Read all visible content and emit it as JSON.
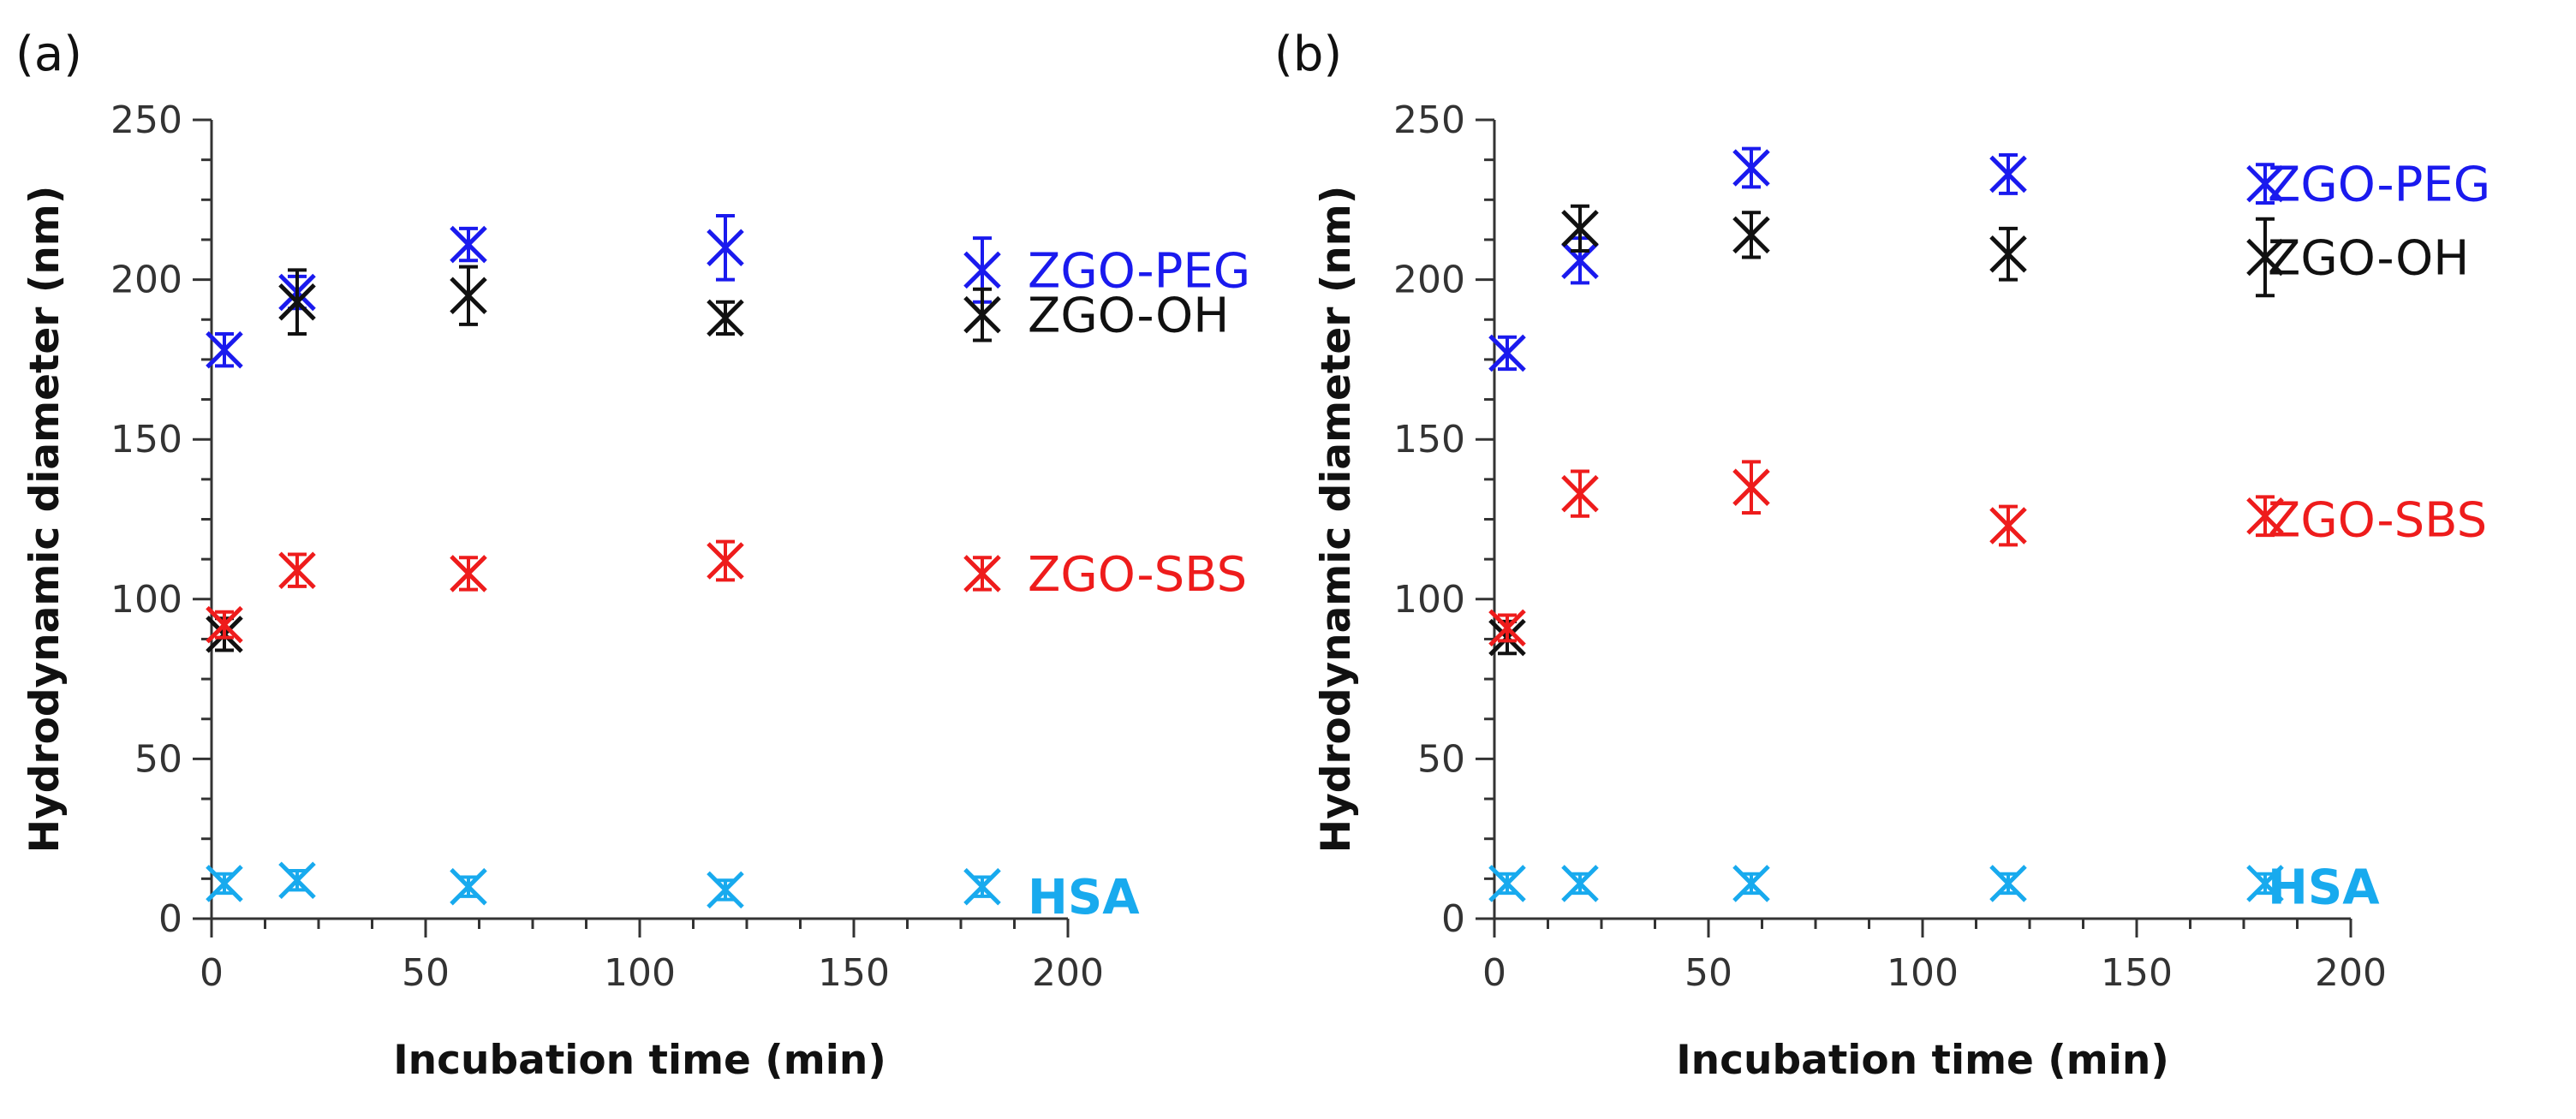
{
  "chart_data": [
    {
      "type": "scatter",
      "panel_label": "(a)",
      "xlabel": "Incubation time (min)",
      "ylabel": "Hydrodynamic diameter (nm)",
      "xlim": [
        0,
        200
      ],
      "ylim": [
        0,
        250
      ],
      "xticks": [
        0,
        50,
        100,
        150,
        200
      ],
      "yticks": [
        0,
        50,
        100,
        150,
        200,
        250
      ],
      "grid": false,
      "error_bars": true,
      "series": [
        {
          "name": "ZGO-PEG",
          "color": "#1a1aee",
          "label_y": 203,
          "x": [
            3,
            20,
            60,
            120,
            180
          ],
          "y": [
            178,
            196,
            211,
            210,
            203
          ],
          "err": [
            5,
            5,
            5,
            10,
            10
          ]
        },
        {
          "name": "ZGO-OH",
          "color": "#111111",
          "label_y": 189,
          "x": [
            3,
            20,
            60,
            120,
            180
          ],
          "y": [
            89,
            193,
            195,
            188,
            189
          ],
          "err": [
            5,
            10,
            9,
            5,
            8
          ]
        },
        {
          "name": "ZGO-SBS",
          "color": "#ee1c1c",
          "label_y": 108,
          "x": [
            3,
            20,
            60,
            120,
            180
          ],
          "y": [
            92,
            109,
            108,
            112,
            108
          ],
          "err": [
            4,
            5,
            5,
            6,
            5
          ]
        },
        {
          "name": "HSA",
          "color": "#18aaee",
          "label_y": 7,
          "x": [
            3,
            20,
            60,
            120,
            180
          ],
          "y": [
            11,
            12,
            10,
            9,
            10
          ],
          "err": [
            3,
            3,
            3,
            3,
            3
          ]
        }
      ]
    },
    {
      "type": "scatter",
      "panel_label": "(b)",
      "xlabel": "Incubation time (min)",
      "ylabel": "Hydrodynamic diameter (nm)",
      "xlim": [
        0,
        200
      ],
      "ylim": [
        0,
        250
      ],
      "xticks": [
        0,
        50,
        100,
        150,
        200
      ],
      "yticks": [
        0,
        50,
        100,
        150,
        200,
        250
      ],
      "grid": false,
      "error_bars": true,
      "series": [
        {
          "name": "ZGO-PEG",
          "color": "#1a1aee",
          "label_y": 230,
          "x": [
            3,
            20,
            60,
            120,
            180
          ],
          "y": [
            177,
            206,
            235,
            233,
            230
          ],
          "err": [
            5,
            7,
            6,
            6,
            6
          ]
        },
        {
          "name": "ZGO-OH",
          "color": "#111111",
          "label_y": 207,
          "x": [
            3,
            20,
            60,
            120,
            180
          ],
          "y": [
            88,
            216,
            214,
            208,
            207
          ],
          "err": [
            5,
            7,
            7,
            8,
            12
          ]
        },
        {
          "name": "ZGO-SBS",
          "color": "#ee1c1c",
          "label_y": 125,
          "x": [
            3,
            20,
            60,
            120,
            180
          ],
          "y": [
            91,
            133,
            135,
            123,
            126
          ],
          "err": [
            4,
            7,
            8,
            6,
            6
          ]
        },
        {
          "name": "HSA",
          "color": "#18aaee",
          "label_y": 10,
          "x": [
            3,
            20,
            60,
            120,
            180
          ],
          "y": [
            11,
            11,
            11,
            11,
            11
          ],
          "err": [
            3,
            3,
            3,
            3,
            3
          ]
        }
      ]
    }
  ]
}
